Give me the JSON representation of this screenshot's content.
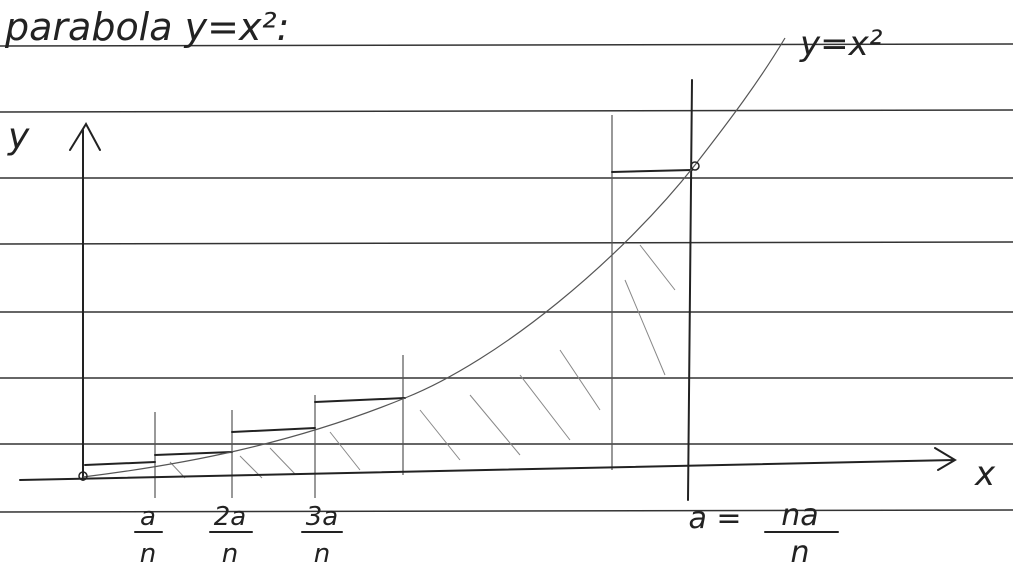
{
  "title": "parabola y=x²:",
  "curve_label": "y=x²",
  "axes": {
    "y": "y",
    "x": "x"
  },
  "ticks": [
    {
      "numerator": "a",
      "denominator": "n"
    },
    {
      "numerator": "2a",
      "denominator": "n"
    },
    {
      "numerator": "3a",
      "denominator": "n"
    }
  ],
  "end_label": {
    "prefix": "a =",
    "numerator": "na",
    "denominator": "n"
  }
}
